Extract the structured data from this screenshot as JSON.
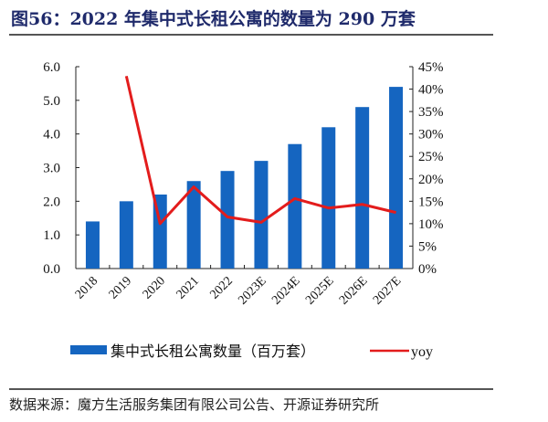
{
  "title": "图56：2022 年集中式长租公寓的数量为 290 万套",
  "source": "数据来源：魔方生活服务集团有限公司公告、开源证券研究所",
  "chart_data": {
    "type": "bar+line",
    "categories": [
      "2018",
      "2019",
      "2020",
      "2021",
      "2022",
      "2023E",
      "2024E",
      "2025E",
      "2026E",
      "2027E"
    ],
    "series": [
      {
        "name": "集中式长租公寓数量（百万套）",
        "type": "bar",
        "axis": "left",
        "color": "#1565c0",
        "values": [
          1.4,
          2.0,
          2.2,
          2.6,
          2.9,
          3.2,
          3.7,
          4.2,
          4.8,
          5.4
        ]
      },
      {
        "name": "yoy",
        "type": "line",
        "axis": "right",
        "color": "#e31c1c",
        "values": [
          null,
          42.9,
          10.0,
          18.2,
          11.5,
          10.3,
          15.6,
          13.5,
          14.3,
          12.5
        ]
      }
    ],
    "y_left": {
      "lim": [
        0,
        6
      ],
      "ticks": [
        "0.0",
        "1.0",
        "2.0",
        "3.0",
        "4.0",
        "5.0",
        "6.0"
      ]
    },
    "y_right": {
      "lim": [
        0,
        45
      ],
      "ticks": [
        "0%",
        "5%",
        "10%",
        "15%",
        "20%",
        "25%",
        "30%",
        "35%",
        "40%",
        "45%"
      ]
    },
    "grid": false,
    "legend": "bottom"
  }
}
